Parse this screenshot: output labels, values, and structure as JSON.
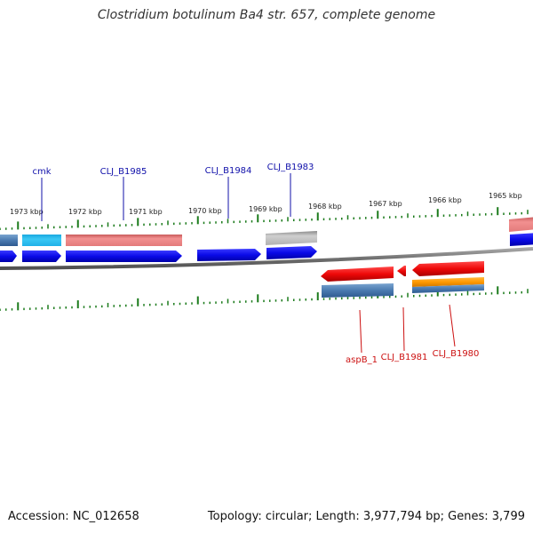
{
  "title": "Clostridium botulinum Ba4 str. 657, complete genome",
  "footer": {
    "accession": "Accession: NC_012658",
    "topology": "Topology: circular; Length: 3,977,794 bp; Genes: 3,799"
  },
  "scale": {
    "unit": "kbp",
    "ticks": [
      {
        "label": "1973 kbp"
      },
      {
        "label": "1972 kbp"
      },
      {
        "label": "1971 kbp"
      },
      {
        "label": "1970 kbp"
      },
      {
        "label": "1969 kbp"
      },
      {
        "label": "1968 kbp"
      },
      {
        "label": "1967 kbp"
      },
      {
        "label": "1966 kbp"
      },
      {
        "label": "1965 kbp"
      }
    ]
  },
  "colors": {
    "forward_cds": "#1010ee",
    "reverse_cds": "#ee1010",
    "forward_label": "#1010aa",
    "reverse_label": "#cc1010",
    "tick": "#1a7a1a",
    "backbone": "#808080",
    "feature_pink": "#ee8080",
    "feature_cyan": "#22bbee",
    "feature_gray": "#b8b8b8",
    "feature_steelblue": "#4a7ab0",
    "feature_orange": "#ff9900"
  },
  "labels": {
    "forward": [
      {
        "name": "cmk"
      },
      {
        "name": "CLJ_B1985"
      },
      {
        "name": "CLJ_B1984"
      },
      {
        "name": "CLJ_B1983"
      }
    ],
    "reverse": [
      {
        "name": "aspB_1"
      },
      {
        "name": "CLJ_B1981"
      },
      {
        "name": "CLJ_B1980"
      }
    ]
  }
}
